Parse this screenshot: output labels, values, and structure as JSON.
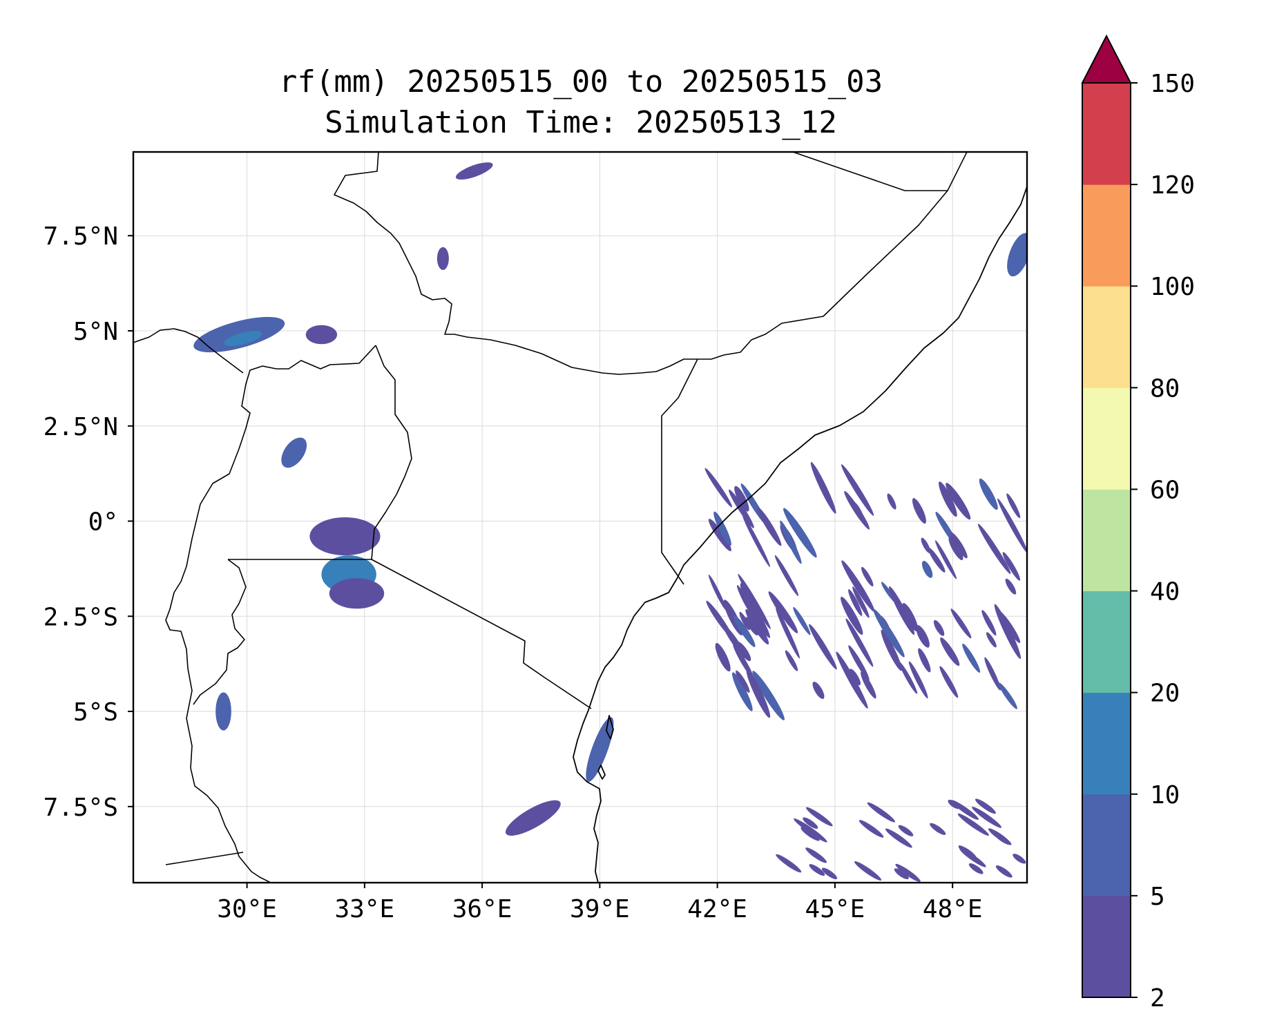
{
  "title": {
    "line1": "rf(mm) 20250515_00 to 20250515_03",
    "line2": "Simulation Time: 20250513_12"
  },
  "map": {
    "lon_range": [
      27.1,
      49.9
    ],
    "lat_range": [
      -9.5,
      9.7
    ],
    "lon_ticks": [
      {
        "value": 30,
        "label": "30°E"
      },
      {
        "value": 33,
        "label": "33°E"
      },
      {
        "value": 36,
        "label": "36°E"
      },
      {
        "value": 39,
        "label": "39°E"
      },
      {
        "value": 42,
        "label": "42°E"
      },
      {
        "value": 45,
        "label": "45°E"
      },
      {
        "value": 48,
        "label": "48°E"
      }
    ],
    "lat_ticks": [
      {
        "value": 7.5,
        "label": "7.5°N"
      },
      {
        "value": 5,
        "label": "5°N"
      },
      {
        "value": 2.5,
        "label": "2.5°N"
      },
      {
        "value": 0,
        "label": "0°"
      },
      {
        "value": -2.5,
        "label": "2.5°S"
      },
      {
        "value": -5,
        "label": "5°S"
      },
      {
        "value": -7.5,
        "label": "7.5°S"
      }
    ],
    "gridlines": true
  },
  "colorbar": {
    "extend": "max",
    "levels": [
      2,
      5,
      10,
      20,
      40,
      60,
      80,
      100,
      120,
      150
    ],
    "labels": [
      "2",
      "5",
      "10",
      "20",
      "40",
      "60",
      "80",
      "100",
      "120",
      "150"
    ],
    "colors": [
      "#5c4fa0",
      "#4c63ad",
      "#3880b9",
      "#63bda8",
      "#bde4a0",
      "#f3f9b0",
      "#fbdf8e",
      "#f99c5b",
      "#d43f4d"
    ],
    "extend_color": "#9e0142"
  },
  "rain_areas": [
    {
      "name": "western-uganda-drc",
      "level": 1,
      "lon": 29.8,
      "lat": 4.9,
      "rx": 1.2,
      "ry": 0.35,
      "rot": -15
    },
    {
      "name": "western-uganda-drc-core",
      "level": 2,
      "lon": 29.9,
      "lat": 4.8,
      "rx": 0.5,
      "ry": 0.15,
      "rot": -15
    },
    {
      "name": "south-sudan-east",
      "level": 0,
      "lon": 31.9,
      "lat": 4.9,
      "rx": 0.4,
      "ry": 0.25,
      "rot": 0
    },
    {
      "name": "lake-albert",
      "level": 1,
      "lon": 31.2,
      "lat": 1.8,
      "rx": 0.25,
      "ry": 0.45,
      "rot": 35
    },
    {
      "name": "lake-victoria-north",
      "level": 0,
      "lon": 32.5,
      "lat": -0.4,
      "rx": 0.9,
      "ry": 0.5,
      "rot": 0
    },
    {
      "name": "lake-victoria-core",
      "level": 2,
      "lon": 32.6,
      "lat": -1.4,
      "rx": 0.7,
      "ry": 0.5,
      "rot": 0
    },
    {
      "name": "lake-victoria-south",
      "level": 0,
      "lon": 32.8,
      "lat": -1.9,
      "rx": 0.7,
      "ry": 0.4,
      "rot": 0
    },
    {
      "name": "ethiopia-north",
      "level": 0,
      "lon": 35.8,
      "lat": 9.2,
      "rx": 0.5,
      "ry": 0.15,
      "rot": -20
    },
    {
      "name": "ethiopia-west",
      "level": 0,
      "lon": 35.0,
      "lat": 6.9,
      "rx": 0.15,
      "ry": 0.3,
      "rot": 0
    },
    {
      "name": "somalia-tip",
      "level": 1,
      "lon": 49.7,
      "lat": 7.0,
      "rx": 0.25,
      "ry": 0.6,
      "rot": 20
    },
    {
      "name": "tanzania-coast",
      "level": 1,
      "lon": 39.0,
      "lat": -6.0,
      "rx": 0.2,
      "ry": 0.9,
      "rot": 20
    },
    {
      "name": "tanzania-southeast",
      "level": 0,
      "lon": 37.3,
      "lat": -7.8,
      "rx": 0.8,
      "ry": 0.25,
      "rot": -30
    },
    {
      "name": "lake-tanganyika",
      "level": 1,
      "lon": 29.4,
      "lat": -5.0,
      "rx": 0.2,
      "ry": 0.5,
      "rot": 0
    }
  ]
}
